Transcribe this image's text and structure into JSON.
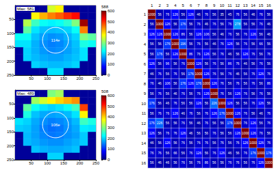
{
  "chart_data": [
    {
      "type": "heatmap",
      "title": "Max: 581",
      "x": [
        12.5,
        37.5,
        62.5,
        87.5,
        112.5,
        137.5,
        162.5,
        187.5,
        212.5,
        237.5
      ],
      "y": [
        12.5,
        37.5,
        62.5,
        87.5,
        112.5,
        137.5,
        162.5,
        187.5,
        212.5,
        237.5
      ],
      "xlim": [
        0,
        250
      ],
      "xticks": [
        50,
        100,
        150,
        200,
        250
      ],
      "ylim": [
        0,
        250
      ],
      "yticks": [
        50,
        100,
        150,
        200,
        250
      ],
      "cells": [
        [
          15,
          15,
          15,
          15,
          350,
          380,
          15,
          15,
          15,
          15
        ],
        [
          15,
          15,
          380,
          420,
          450,
          470,
          500,
          520,
          15,
          15
        ],
        [
          15,
          330,
          260,
          230,
          220,
          230,
          250,
          300,
          581,
          15
        ],
        [
          15,
          280,
          210,
          190,
          185,
          190,
          200,
          230,
          450,
          15
        ],
        [
          230,
          230,
          190,
          170,
          160,
          165,
          180,
          200,
          300,
          280
        ],
        [
          210,
          210,
          180,
          160,
          150,
          155,
          170,
          190,
          240,
          230
        ],
        [
          15,
          200,
          180,
          165,
          155,
          160,
          170,
          185,
          210,
          15
        ],
        [
          15,
          200,
          185,
          175,
          170,
          170,
          180,
          190,
          210,
          15
        ],
        [
          15,
          15,
          200,
          190,
          185,
          185,
          190,
          200,
          15,
          15
        ],
        [
          15,
          15,
          15,
          15,
          210,
          210,
          15,
          15,
          15,
          15
        ]
      ],
      "colorbar": {
        "label": "588",
        "range": [
          0,
          600
        ],
        "ticks": [
          0,
          100,
          200,
          300,
          400,
          500,
          600
        ]
      },
      "annotations": [
        {
          "text": "114e",
          "x": 125,
          "y": 125,
          "r": 40
        }
      ]
    },
    {
      "type": "heatmap",
      "title": "Max: 489",
      "x": [
        12.5,
        37.5,
        62.5,
        87.5,
        112.5,
        137.5,
        162.5,
        187.5,
        212.5,
        237.5
      ],
      "y": [
        12.5,
        37.5,
        62.5,
        87.5,
        112.5,
        137.5,
        162.5,
        187.5,
        212.5,
        237.5
      ],
      "xlim": [
        0,
        250
      ],
      "xticks": [
        50,
        100,
        150,
        200,
        250
      ],
      "ylim": [
        0,
        250
      ],
      "yticks": [
        50,
        100,
        150,
        200,
        250
      ],
      "cells": [
        [
          15,
          15,
          15,
          15,
          300,
          320,
          15,
          15,
          15,
          15
        ],
        [
          15,
          15,
          320,
          350,
          380,
          400,
          420,
          440,
          15,
          15
        ],
        [
          15,
          280,
          230,
          210,
          200,
          210,
          230,
          260,
          489,
          15
        ],
        [
          15,
          240,
          190,
          175,
          170,
          175,
          185,
          210,
          380,
          15
        ],
        [
          210,
          200,
          175,
          160,
          150,
          155,
          165,
          185,
          260,
          240
        ],
        [
          195,
          190,
          170,
          150,
          140,
          145,
          160,
          175,
          215,
          210
        ],
        [
          15,
          185,
          170,
          155,
          145,
          150,
          160,
          170,
          195,
          15
        ],
        [
          15,
          185,
          175,
          165,
          160,
          160,
          170,
          180,
          195,
          15
        ],
        [
          15,
          15,
          190,
          180,
          175,
          175,
          180,
          190,
          15,
          15
        ],
        [
          15,
          15,
          15,
          15,
          200,
          200,
          15,
          15,
          15,
          15
        ]
      ],
      "colorbar": {
        "label": "508",
        "range": [
          0,
          600
        ],
        "ticks": [
          0,
          100,
          200,
          300,
          400,
          500,
          600
        ]
      },
      "annotations": [
        {
          "text": "106e",
          "x": 125,
          "y": 125,
          "r": 40
        }
      ]
    },
    {
      "type": "heatmap",
      "categories": [
        "1",
        "2",
        "3",
        "4",
        "5",
        "6",
        "7",
        "8",
        "9",
        "10",
        "11",
        "12",
        "13",
        "14",
        "15",
        "16"
      ],
      "data_labels": true,
      "color_range": [
        0,
        1000
      ],
      "cells": [
        [
          1000,
          56,
          76,
          126,
          56,
          126,
          46,
          76,
          56,
          35,
          45,
          76,
          56,
          46,
          76,
          56
        ],
        [
          56,
          1000,
          126,
          56,
          176,
          56,
          76,
          46,
          76,
          56,
          76,
          278,
          56,
          56,
          76,
          46
        ],
        [
          126,
          126,
          1000,
          126,
          86,
          56,
          126,
          106,
          56,
          46,
          76,
          56,
          76,
          126,
          56,
          46
        ],
        [
          56,
          56,
          176,
          1000,
          196,
          56,
          76,
          56,
          46,
          76,
          126,
          56,
          76,
          56,
          66,
          56
        ],
        [
          56,
          176,
          56,
          126,
          1000,
          86,
          76,
          126,
          56,
          76,
          46,
          56,
          126,
          76,
          56,
          76
        ],
        [
          126,
          56,
          96,
          56,
          76,
          1000,
          126,
          56,
          76,
          56,
          86,
          76,
          46,
          56,
          76,
          56
        ],
        [
          46,
          76,
          56,
          76,
          56,
          176,
          1000,
          126,
          76,
          56,
          76,
          46,
          56,
          76,
          126,
          76
        ],
        [
          76,
          46,
          106,
          56,
          176,
          126,
          176,
          1000,
          126,
          76,
          56,
          76,
          56,
          76,
          56,
          86
        ],
        [
          56,
          76,
          56,
          46,
          76,
          56,
          76,
          126,
          1000,
          76,
          56,
          126,
          76,
          56,
          76,
          56
        ],
        [
          176,
          56,
          46,
          76,
          56,
          56,
          126,
          56,
          226,
          1000,
          126,
          56,
          56,
          76,
          126,
          56
        ],
        [
          56,
          76,
          76,
          126,
          46,
          76,
          56,
          76,
          126,
          176,
          1000,
          126,
          76,
          56,
          46,
          76
        ],
        [
          176,
          226,
          56,
          56,
          76,
          56,
          46,
          76,
          56,
          56,
          176,
          1000,
          76,
          126,
          56,
          76
        ],
        [
          126,
          56,
          76,
          76,
          126,
          46,
          56,
          56,
          76,
          56,
          56,
          126,
          1000,
          126,
          76,
          56
        ],
        [
          46,
          56,
          126,
          56,
          76,
          56,
          76,
          76,
          56,
          76,
          56,
          76,
          126,
          1000,
          126,
          76
        ],
        [
          76,
          76,
          56,
          66,
          56,
          76,
          126,
          56,
          76,
          126,
          46,
          56,
          76,
          176,
          1000,
          176
        ],
        [
          56,
          46,
          46,
          56,
          76,
          56,
          76,
          86,
          56,
          56,
          76,
          76,
          56,
          76,
          126,
          1000
        ]
      ]
    }
  ]
}
